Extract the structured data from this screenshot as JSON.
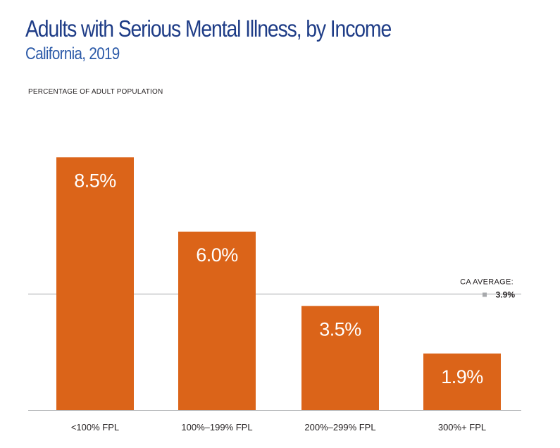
{
  "chart_data": {
    "type": "bar",
    "title": "Adults with Serious Mental Illness, by Income",
    "subtitle": "California, 2019",
    "ylabel": "PERCENTAGE OF ADULT POPULATION",
    "xlabel": "",
    "categories": [
      "<100% FPL",
      "100%–199% FPL",
      "200%–299% FPL",
      "300%+ FPL"
    ],
    "values": [
      8.5,
      6.0,
      3.5,
      1.9
    ],
    "value_labels": [
      "8.5%",
      "6.0%",
      "3.5%",
      "1.9%"
    ],
    "ylim": [
      0,
      10
    ],
    "grid": false,
    "bar_color": "#db6419",
    "reference_line": {
      "label": "CA AVERAGE:",
      "value": 3.9,
      "value_label": "3.9%",
      "color": "#a7a9ac"
    }
  },
  "colors": {
    "title": "#1f3d87",
    "subtitle": "#2c5aa8",
    "text": "#231f20"
  }
}
